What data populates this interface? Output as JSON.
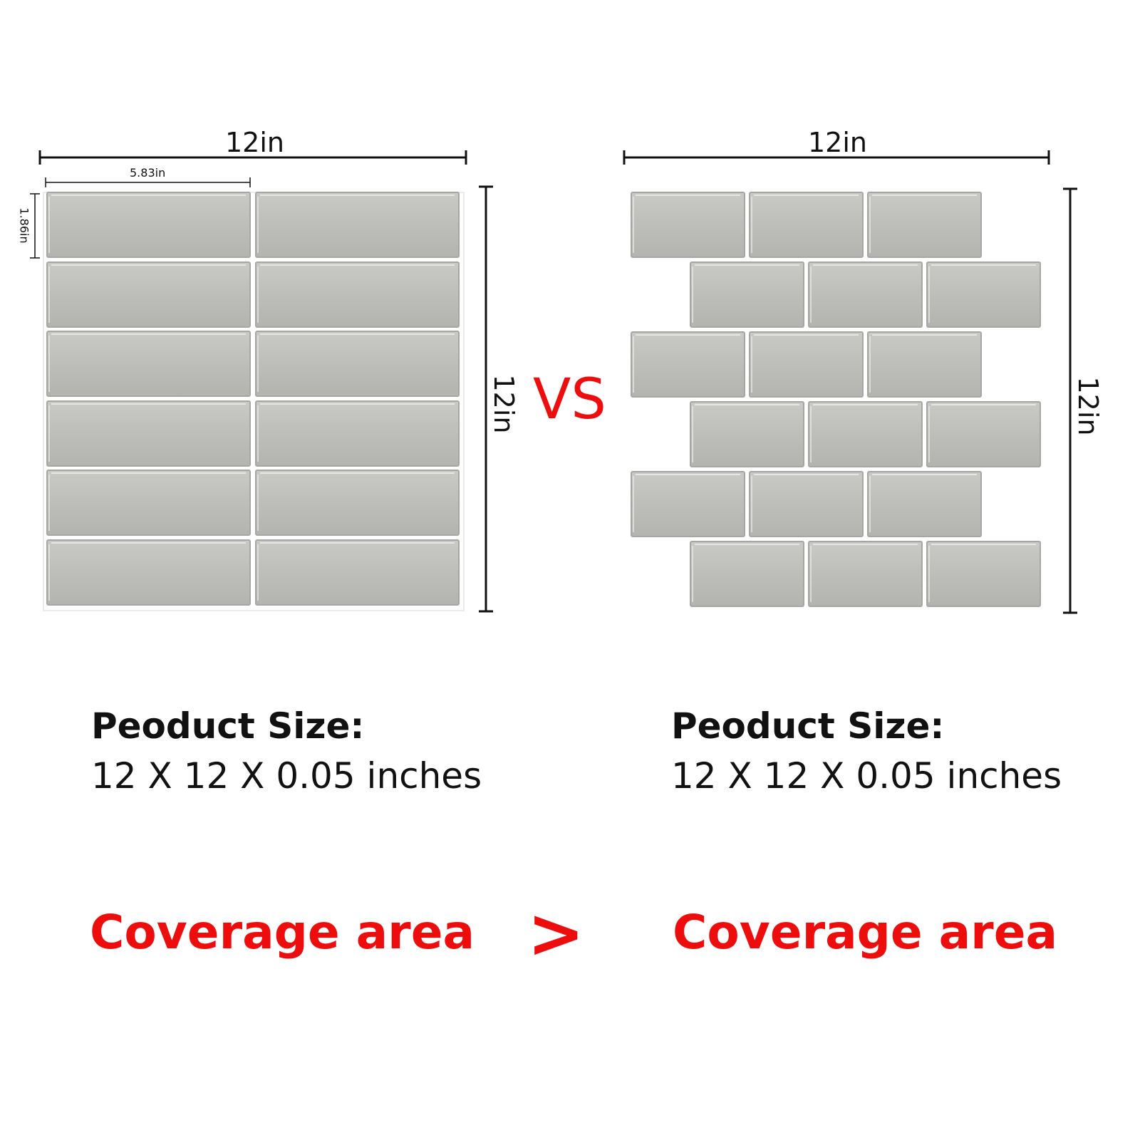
{
  "colors": {
    "accent": "#ee0d0d",
    "tile_fill": "#bdbeba",
    "tile_edge": "#a6a7a3",
    "tile_highlight": "#e6e7e4",
    "line": "#111111"
  },
  "left_panel": {
    "width_label": "12in",
    "height_label": "12in",
    "tile_width_label": "5.83in",
    "tile_height_label": "1.86in",
    "pattern": "straight stack, 2 columns x 6 rows",
    "size_heading": "Peoduct Size:",
    "size_value": "12 X 12 X 0.05 inches",
    "coverage_label": "Coverage area"
  },
  "right_panel": {
    "width_label": "12in",
    "height_label": "12in",
    "pattern": "offset brick, 3 tiles x 6 rows",
    "size_heading": "Peoduct Size:",
    "size_value": "12 X 12 X 0.05 inches",
    "coverage_label": "Coverage area"
  },
  "comparison": {
    "vs_label": "VS",
    "relation_symbol": ">"
  }
}
